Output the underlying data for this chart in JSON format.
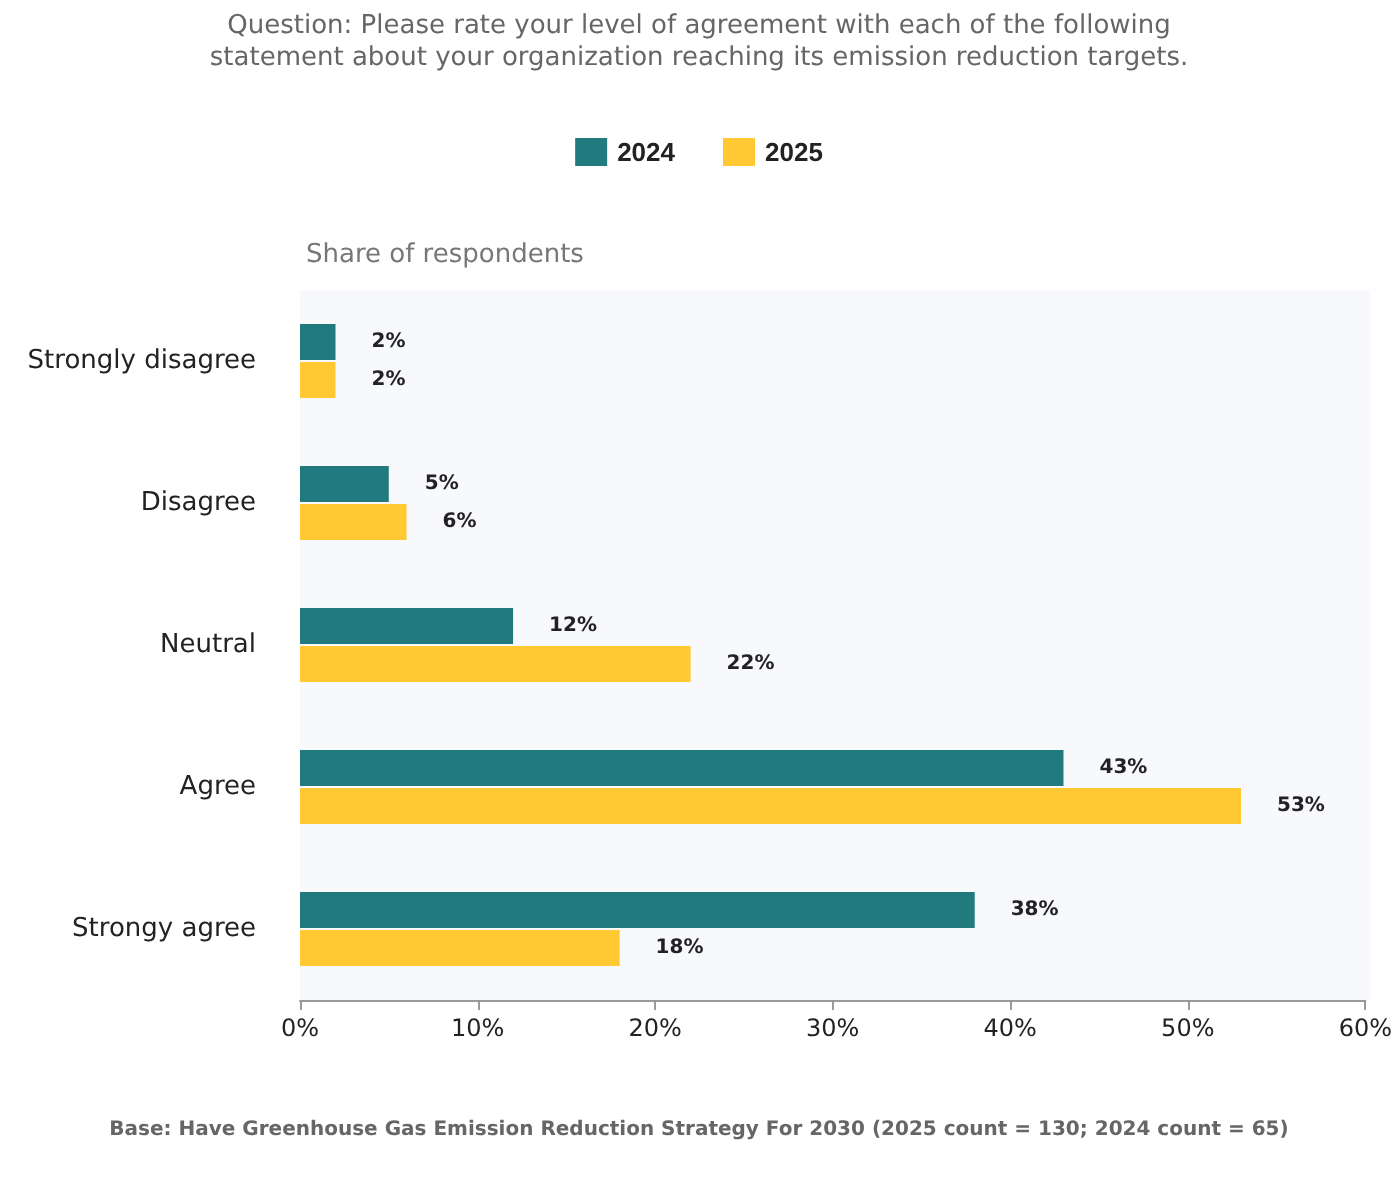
{
  "chart_data": {
    "type": "bar",
    "orientation": "horizontal",
    "subtitle": "Question: Please rate your level of agreement with each of the following\nstatement about your organization reaching its emission reduction targets.",
    "xlabel": "Share of respondents",
    "categories": [
      "Strongly disagree",
      "Disagree",
      "Neutral",
      "Agree",
      "Strongy agree"
    ],
    "series": [
      {
        "name": "2024",
        "color": "#217a7e",
        "values": [
          2,
          5,
          12,
          43,
          38
        ],
        "value_labels": [
          "2%",
          "5%",
          "12%",
          "43%",
          "38%"
        ]
      },
      {
        "name": "2025",
        "color": "#fec932",
        "values": [
          2,
          6,
          22,
          53,
          18
        ],
        "value_labels": [
          "2%",
          "6%",
          "22%",
          "53%",
          "18%"
        ]
      }
    ],
    "xlim": [
      0,
      60
    ],
    "xticks": [
      {
        "value": 0,
        "label": "0%"
      },
      {
        "value": 10,
        "label": "10%"
      },
      {
        "value": 20,
        "label": "20%"
      },
      {
        "value": 30,
        "label": "30%"
      },
      {
        "value": 40,
        "label": "40%"
      },
      {
        "value": 50,
        "label": "50%"
      },
      {
        "value": 60,
        "label": "60%"
      }
    ],
    "legend": "top",
    "annotations": [
      "Base: Have Greenhouse Gas Emission Reduction Strategy For 2030 (2025 count = 130; 2024 count = 65)"
    ]
  }
}
